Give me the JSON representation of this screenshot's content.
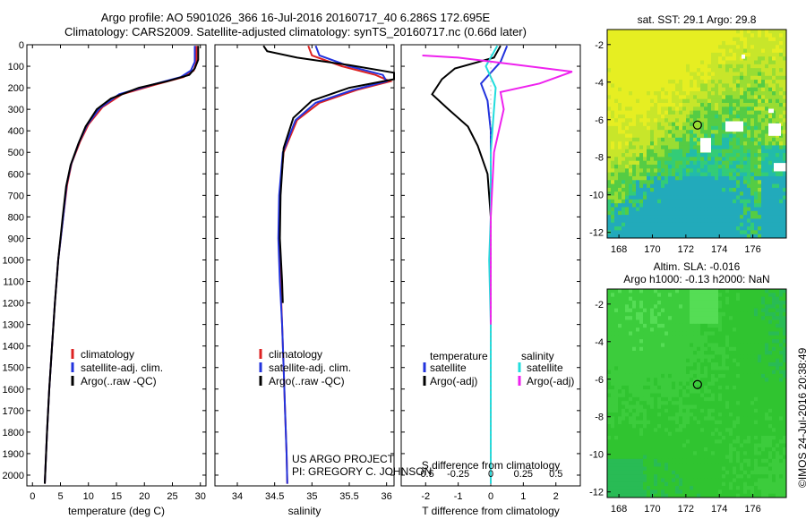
{
  "header": {
    "line1": "Argo profile: AO 5901026_366 16-Jul-2016 20160717_40 6.286S 172.695E",
    "line2": "Climatology: CARS2009. Satellite-adjusted climatology: synTS_20160717.nc (0.66d later)"
  },
  "credits": {
    "project": "US ARGO PROJECT",
    "pi": "PI: GREGORY C. JOHNSON",
    "watermark": "©IMOS 24-Jul-2016 20:38:49"
  },
  "colors": {
    "climatology": "#dd2222",
    "satellite": "#2233dd",
    "argo": "#000000",
    "cyan": "#22dddd",
    "magenta": "#ee22ee"
  },
  "chart_data": [
    {
      "id": "temperature",
      "type": "line",
      "xlabel": "temperature (deg C)",
      "ylim": [
        2050,
        0
      ],
      "xlim": [
        -1,
        31
      ],
      "xticks": [
        0,
        5,
        10,
        15,
        20,
        25,
        30
      ],
      "yticks": [
        0,
        100,
        200,
        300,
        400,
        500,
        600,
        700,
        800,
        900,
        1000,
        1100,
        1200,
        1300,
        1400,
        1500,
        1600,
        1700,
        1800,
        1900,
        2000
      ],
      "legend": [
        "climatology",
        "satellite-adj. clim.",
        "Argo(..raw -QC)"
      ],
      "series": [
        {
          "name": "climatology",
          "color_key": "climatology",
          "points": [
            [
              29.3,
              5
            ],
            [
              29.3,
              80
            ],
            [
              28.8,
              120
            ],
            [
              27.0,
              150
            ],
            [
              22.0,
              185
            ],
            [
              16.0,
              230
            ],
            [
              12.5,
              290
            ],
            [
              10.0,
              370
            ],
            [
              8.5,
              450
            ],
            [
              7.0,
              550
            ],
            [
              6.2,
              650
            ],
            [
              5.5,
              800
            ],
            [
              4.6,
              1000
            ],
            [
              4.0,
              1200
            ],
            [
              3.5,
              1400
            ],
            [
              3.0,
              1600
            ],
            [
              2.6,
              1800
            ],
            [
              2.2,
              2040
            ]
          ]
        },
        {
          "name": "satellite-adj. clim.",
          "color_key": "satellite",
          "points": [
            [
              29.0,
              5
            ],
            [
              29.0,
              80
            ],
            [
              28.3,
              120
            ],
            [
              26.5,
              150
            ],
            [
              21.5,
              185
            ],
            [
              15.5,
              230
            ],
            [
              12.0,
              295
            ],
            [
              9.7,
              375
            ],
            [
              8.3,
              455
            ],
            [
              6.9,
              555
            ],
            [
              6.1,
              650
            ],
            [
              5.5,
              800
            ],
            [
              4.6,
              1000
            ],
            [
              4.0,
              1200
            ],
            [
              3.5,
              1400
            ],
            [
              3.0,
              1600
            ],
            [
              2.6,
              1800
            ],
            [
              2.2,
              2040
            ]
          ]
        },
        {
          "name": "Argo(..raw -QC)",
          "color_key": "argo",
          "points": [
            [
              29.6,
              5
            ],
            [
              29.6,
              70
            ],
            [
              29.0,
              110
            ],
            [
              28.0,
              140
            ],
            [
              24.0,
              170
            ],
            [
              19.0,
              200
            ],
            [
              14.0,
              250
            ],
            [
              11.5,
              300
            ],
            [
              9.5,
              380
            ],
            [
              8.2,
              460
            ],
            [
              6.8,
              560
            ],
            [
              6.0,
              660
            ],
            [
              5.4,
              800
            ],
            [
              4.6,
              1000
            ],
            [
              4.0,
              1200
            ],
            [
              3.5,
              1400
            ],
            [
              3.0,
              1600
            ],
            [
              2.6,
              1800
            ],
            [
              2.2,
              2040
            ]
          ]
        }
      ]
    },
    {
      "id": "salinity",
      "type": "line",
      "xlabel": "salinity",
      "ylim": [
        2050,
        0
      ],
      "xlim": [
        33.7,
        36.1
      ],
      "xticks": [
        34,
        34.5,
        35,
        35.5,
        36
      ],
      "xticklabels": [
        "34",
        "34.5",
        "35",
        "35.5",
        "36"
      ],
      "legend": [
        "climatology",
        "satellite-adj. clim.",
        "Argo(..raw -QC)"
      ],
      "series": [
        {
          "name": "climatology",
          "color_key": "climatology",
          "points": [
            [
              34.95,
              5
            ],
            [
              35.0,
              50
            ],
            [
              35.4,
              100
            ],
            [
              35.85,
              140
            ],
            [
              36.05,
              170
            ],
            [
              35.6,
              210
            ],
            [
              35.1,
              270
            ],
            [
              34.8,
              350
            ],
            [
              34.62,
              500
            ],
            [
              34.57,
              700
            ],
            [
              34.56,
              900
            ],
            [
              34.58,
              1100
            ],
            [
              34.6,
              1300
            ],
            [
              34.62,
              1500
            ],
            [
              34.64,
              1700
            ],
            [
              34.66,
              1900
            ],
            [
              34.67,
              2040
            ]
          ]
        },
        {
          "name": "satellite-adj. clim.",
          "color_key": "satellite",
          "points": [
            [
              35.05,
              5
            ],
            [
              35.1,
              50
            ],
            [
              35.5,
              100
            ],
            [
              35.95,
              140
            ],
            [
              36.0,
              170
            ],
            [
              35.55,
              210
            ],
            [
              35.05,
              270
            ],
            [
              34.78,
              350
            ],
            [
              34.61,
              500
            ],
            [
              34.56,
              700
            ],
            [
              34.55,
              900
            ],
            [
              34.57,
              1100
            ],
            [
              34.6,
              1300
            ],
            [
              34.62,
              1500
            ],
            [
              34.64,
              1700
            ],
            [
              34.66,
              1900
            ],
            [
              34.67,
              2040
            ]
          ]
        },
        {
          "name": "Argo(..raw -QC)",
          "color_key": "argo",
          "points": [
            [
              34.35,
              5
            ],
            [
              34.4,
              30
            ],
            [
              34.8,
              60
            ],
            [
              35.5,
              95
            ],
            [
              36.1,
              130
            ],
            [
              36.1,
              160
            ],
            [
              35.5,
              200
            ],
            [
              35.0,
              260
            ],
            [
              34.75,
              340
            ],
            [
              34.62,
              480
            ],
            [
              34.58,
              700
            ],
            [
              34.57,
              900
            ],
            [
              34.6,
              1100
            ],
            [
              34.61,
              1200
            ]
          ]
        }
      ]
    },
    {
      "id": "difference",
      "type": "line",
      "xlabel": "T difference from climatology",
      "xlabel_top": "S difference from climatology",
      "ylim": [
        2050,
        0
      ],
      "xlim": [
        -2.75,
        2.75
      ],
      "xticks": [
        -2,
        -1,
        0,
        1,
        2
      ],
      "xticklabels": [
        "-2",
        "-1",
        "0",
        "1",
        "2"
      ],
      "sticks": [
        -0.5,
        -0.25,
        0,
        0.25,
        0.5
      ],
      "sticklabels": [
        "-0.5",
        "-0.25",
        "0",
        "0.25",
        "0.5"
      ],
      "legend_groups": [
        {
          "title": "temperature",
          "items": [
            "satellite",
            "Argo(-adj)"
          ]
        },
        {
          "title": "salinity",
          "items": [
            "satellite",
            "Argo(-adj)"
          ]
        }
      ],
      "series": [
        {
          "name": "satellite",
          "group": "temperature",
          "color_key": "satellite",
          "points": [
            [
              0.5,
              5
            ],
            [
              0.3,
              80
            ],
            [
              -0.3,
              180
            ],
            [
              -0.1,
              260
            ],
            [
              0.0,
              400
            ],
            [
              0.0,
              600
            ],
            [
              0.0,
              900
            ],
            [
              0.0,
              1200
            ],
            [
              0.0,
              1500
            ],
            [
              0.0,
              2040
            ]
          ]
        },
        {
          "name": "Argo(-adj)",
          "group": "temperature",
          "color_key": "argo",
          "points": [
            [
              0.3,
              5
            ],
            [
              0.1,
              60
            ],
            [
              -1.1,
              110
            ],
            [
              -1.5,
              160
            ],
            [
              -1.8,
              230
            ],
            [
              -1.3,
              300
            ],
            [
              -0.7,
              380
            ],
            [
              -0.4,
              470
            ],
            [
              -0.1,
              600
            ],
            [
              0.0,
              800
            ],
            [
              0.0,
              1000
            ],
            [
              0.0,
              1200
            ]
          ]
        },
        {
          "name": "satellite",
          "group": "salinity",
          "color_key": "cyan",
          "points": [
            [
              0.2,
              5
            ],
            [
              -0.15,
              100
            ],
            [
              0.15,
              200
            ],
            [
              0.1,
              300
            ],
            [
              0.0,
              500
            ],
            [
              0.0,
              800
            ],
            [
              -0.05,
              1000
            ],
            [
              0.0,
              1300
            ],
            [
              0.0,
              1600
            ],
            [
              0.0,
              2040
            ]
          ]
        },
        {
          "name": "Argo(-adj)",
          "group": "salinity",
          "color_key": "magenta",
          "points": [
            [
              -2.1,
              50
            ],
            [
              -1.0,
              60
            ],
            [
              0.1,
              80
            ],
            [
              2.5,
              125
            ],
            [
              1.5,
              180
            ],
            [
              0.3,
              220
            ],
            [
              0.4,
              300
            ],
            [
              0.1,
              500
            ],
            [
              0.0,
              800
            ],
            [
              0.0,
              1100
            ],
            [
              0.0,
              1300
            ]
          ]
        }
      ]
    },
    {
      "id": "sst_map",
      "type": "heatmap",
      "title": "sat. SST: 29.1 Argo: 29.8",
      "xlim": [
        167.3,
        178.0
      ],
      "ylim": [
        -12.3,
        -1.2
      ],
      "xticks": [
        168,
        170,
        172,
        174,
        176
      ],
      "yticks": [
        -2,
        -4,
        -6,
        -8,
        -10,
        -12
      ],
      "marker": {
        "lon": 172.695,
        "lat": -6.286
      }
    },
    {
      "id": "sla_map",
      "type": "heatmap",
      "title": "Altim. SLA: -0.016",
      "subtitle": "Argo h1000: -0.13 h2000: NaN",
      "xlim": [
        167.3,
        178.0
      ],
      "ylim": [
        -12.3,
        -1.2
      ],
      "xticks": [
        168,
        170,
        172,
        174,
        176
      ],
      "yticks": [
        -2,
        -4,
        -6,
        -8,
        -10,
        -12
      ],
      "marker": {
        "lon": 172.695,
        "lat": -6.286
      }
    }
  ]
}
